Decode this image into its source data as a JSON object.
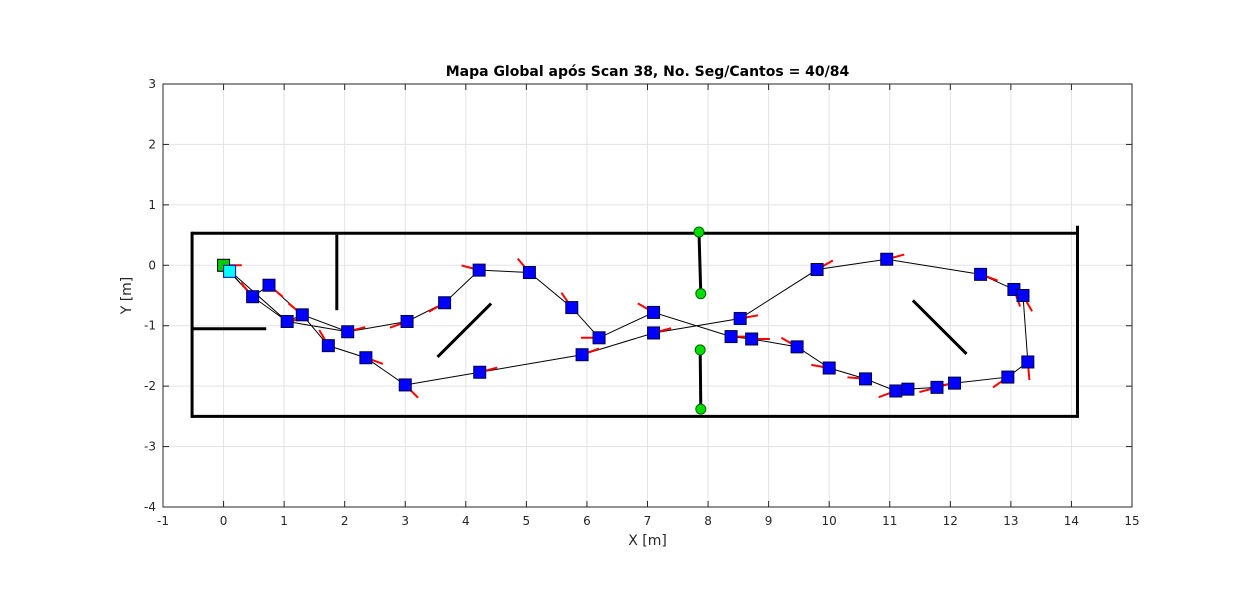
{
  "chart_data": {
    "type": "scatter",
    "title": "Mapa Global após Scan 38, No. Seg/Cantos = 40/84",
    "xlabel": "X [m]",
    "ylabel": "Y [m]",
    "xlim": [
      -1,
      15
    ],
    "ylim": [
      -4,
      3
    ],
    "xticks": [
      -1,
      0,
      1,
      2,
      3,
      4,
      5,
      6,
      7,
      8,
      9,
      10,
      11,
      12,
      13,
      14,
      15
    ],
    "yticks": [
      -4,
      -3,
      -2,
      -1,
      0,
      1,
      2,
      3
    ],
    "grid": true,
    "colors": {
      "wall": "#000000",
      "pose": "#0000ff",
      "heading": "#ff0000",
      "corner": "#00dd00",
      "start": "#00cc00",
      "current": "#00ffff",
      "grid": "#e3e3e3",
      "axis": "#262626"
    },
    "walls": [
      {
        "x": [
          -0.5,
          14.1
        ],
        "y": [
          0.53,
          0.53
        ]
      },
      {
        "x": [
          -0.5,
          14.1
        ],
        "y": [
          -2.5,
          -2.5
        ]
      },
      {
        "x": [
          -0.52,
          -0.52
        ],
        "y": [
          0.53,
          -2.5
        ]
      },
      {
        "x": [
          14.1,
          14.1
        ],
        "y": [
          0.63,
          -2.45
        ]
      },
      {
        "x": [
          1.87,
          1.87
        ],
        "y": [
          0.48,
          -0.72
        ]
      },
      {
        "x": [
          -0.5,
          0.68
        ],
        "y": [
          -1.05,
          -1.05
        ]
      },
      {
        "x": [
          3.55,
          4.4
        ],
        "y": [
          -1.5,
          -0.65
        ]
      },
      {
        "x": [
          11.4,
          12.25
        ],
        "y": [
          -0.6,
          -1.45
        ]
      },
      {
        "x": [
          7.85,
          7.88
        ],
        "y": [
          0.55,
          -0.47
        ]
      },
      {
        "x": [
          7.87,
          7.88
        ],
        "y": [
          -1.4,
          -2.38
        ]
      }
    ],
    "trajectory": {
      "x": [
        0,
        0.1,
        0.48,
        0.75,
        1.3,
        1.73,
        2.35,
        3.0,
        4.23,
        5.92,
        7.1,
        8.53,
        9.8,
        10.95,
        12.5,
        13.05,
        13.2,
        13.28,
        12.95,
        12.07,
        11.78,
        11.3,
        11.1,
        10.6,
        10.0,
        9.47,
        8.72,
        8.38,
        7.1,
        6.2,
        5.75,
        5.05,
        4.22,
        3.65,
        3.03,
        2.05,
        1.05,
        0,
        0.48,
        1.05,
        1.3,
        2.05,
        3.03
      ],
      "y": [
        0,
        -0.1,
        -0.52,
        -0.33,
        -0.82,
        -1.33,
        -1.53,
        -1.98,
        -1.77,
        -1.48,
        -1.12,
        -0.88,
        -0.07,
        0.1,
        -0.15,
        -0.4,
        -0.5,
        -1.6,
        -1.85,
        -1.95,
        -2.02,
        -2.05,
        -2.08,
        -1.88,
        -1.7,
        -1.35,
        -1.22,
        -1.18,
        -0.78,
        -1.2,
        -0.7,
        -0.12,
        -0.08,
        -0.62,
        -0.93,
        -1.1,
        -0.93,
        0,
        -0.52,
        -0.93,
        -0.82,
        -1.1,
        -0.93
      ]
    },
    "poses": [
      {
        "x": 0.48,
        "y": -0.52,
        "heading": 130
      },
      {
        "x": 0.75,
        "y": -0.33,
        "heading": -40
      },
      {
        "x": 1.05,
        "y": -0.93,
        "heading": 10
      },
      {
        "x": 1.3,
        "y": -0.82,
        "heading": 140
      },
      {
        "x": 2.05,
        "y": -1.1,
        "heading": 15
      },
      {
        "x": 1.73,
        "y": -1.33,
        "heading": 120
      },
      {
        "x": 2.35,
        "y": -1.53,
        "heading": -20
      },
      {
        "x": 3.03,
        "y": -0.93,
        "heading": 200
      },
      {
        "x": 3.0,
        "y": -1.98,
        "heading": -45
      },
      {
        "x": 3.65,
        "y": -0.62,
        "heading": 210
      },
      {
        "x": 4.22,
        "y": -0.08,
        "heading": 165
      },
      {
        "x": 4.23,
        "y": -1.77,
        "heading": 15
      },
      {
        "x": 5.05,
        "y": -0.12,
        "heading": 130
      },
      {
        "x": 5.75,
        "y": -0.7,
        "heading": 125
      },
      {
        "x": 6.2,
        "y": -1.2,
        "heading": 180
      },
      {
        "x": 5.92,
        "y": -1.48,
        "heading": 20
      },
      {
        "x": 7.1,
        "y": -0.78,
        "heading": 150
      },
      {
        "x": 7.1,
        "y": -1.12,
        "heading": 15
      },
      {
        "x": 8.53,
        "y": -0.88,
        "heading": 10
      },
      {
        "x": 8.38,
        "y": -1.18,
        "heading": 0
      },
      {
        "x": 8.72,
        "y": -1.22,
        "heading": 0
      },
      {
        "x": 9.47,
        "y": -1.35,
        "heading": 150
      },
      {
        "x": 10.0,
        "y": -1.7,
        "heading": 170
      },
      {
        "x": 9.8,
        "y": -0.07,
        "heading": 30
      },
      {
        "x": 10.6,
        "y": -1.88,
        "heading": 175
      },
      {
        "x": 10.95,
        "y": 0.1,
        "heading": 15
      },
      {
        "x": 11.1,
        "y": -2.08,
        "heading": 200
      },
      {
        "x": 11.3,
        "y": -2.05,
        "heading": 190
      },
      {
        "x": 11.78,
        "y": -2.02,
        "heading": 195
      },
      {
        "x": 12.07,
        "y": -1.95,
        "heading": 190
      },
      {
        "x": 12.5,
        "y": -0.15,
        "heading": -20
      },
      {
        "x": 12.95,
        "y": -1.85,
        "heading": 215
      },
      {
        "x": 13.05,
        "y": -0.4,
        "heading": -70
      },
      {
        "x": 13.2,
        "y": -0.5,
        "heading": -60
      },
      {
        "x": 13.28,
        "y": -1.6,
        "heading": -85
      }
    ],
    "corners": [
      {
        "x": 7.85,
        "y": 0.55
      },
      {
        "x": 7.88,
        "y": -0.47
      },
      {
        "x": 7.87,
        "y": -1.4
      },
      {
        "x": 7.88,
        "y": -2.38
      }
    ],
    "start_pose": {
      "x": 0,
      "y": 0,
      "heading": 0
    },
    "current_pose": {
      "x": 0.1,
      "y": -0.1
    }
  }
}
